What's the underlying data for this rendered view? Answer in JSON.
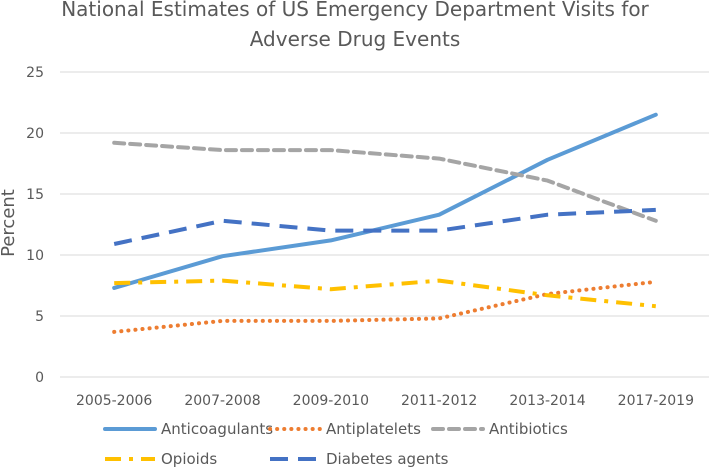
{
  "chart_data": {
    "type": "line",
    "title": [
      "National Estimates of US Emergency Department Visits for",
      "Adverse Drug Events"
    ],
    "xlabel": "",
    "ylabel": "Percent",
    "categories": [
      "2005-2006",
      "2007-2008",
      "2009-2010",
      "2011-2012",
      "2013-2014",
      "2017-2019"
    ],
    "ylim": [
      0,
      25
    ],
    "yticks": [
      0,
      5,
      10,
      15,
      20,
      25
    ],
    "grid": true,
    "legend": "bottom",
    "series": [
      {
        "name": "Anticoagulants",
        "color": "#5B9BD5",
        "style": "solid",
        "values": [
          7.3,
          9.9,
          11.2,
          13.3,
          17.8,
          21.5
        ]
      },
      {
        "name": "Antiplatelets",
        "color": "#ED7D31",
        "style": "dotted",
        "values": [
          3.7,
          4.6,
          4.6,
          4.8,
          6.8,
          7.8
        ]
      },
      {
        "name": "Antibiotics",
        "color": "#A5A5A5",
        "style": "dashed",
        "values": [
          19.2,
          18.6,
          18.6,
          17.9,
          16.1,
          12.8
        ]
      },
      {
        "name": "Opioids",
        "color": "#FFC000",
        "style": "dashdot",
        "values": [
          7.7,
          7.9,
          7.2,
          7.9,
          6.7,
          5.8
        ]
      },
      {
        "name": "Diabetes agents",
        "color": "#4472C4",
        "style": "longdash",
        "values": [
          10.9,
          12.8,
          12.0,
          12.0,
          13.3,
          13.7
        ]
      }
    ]
  }
}
